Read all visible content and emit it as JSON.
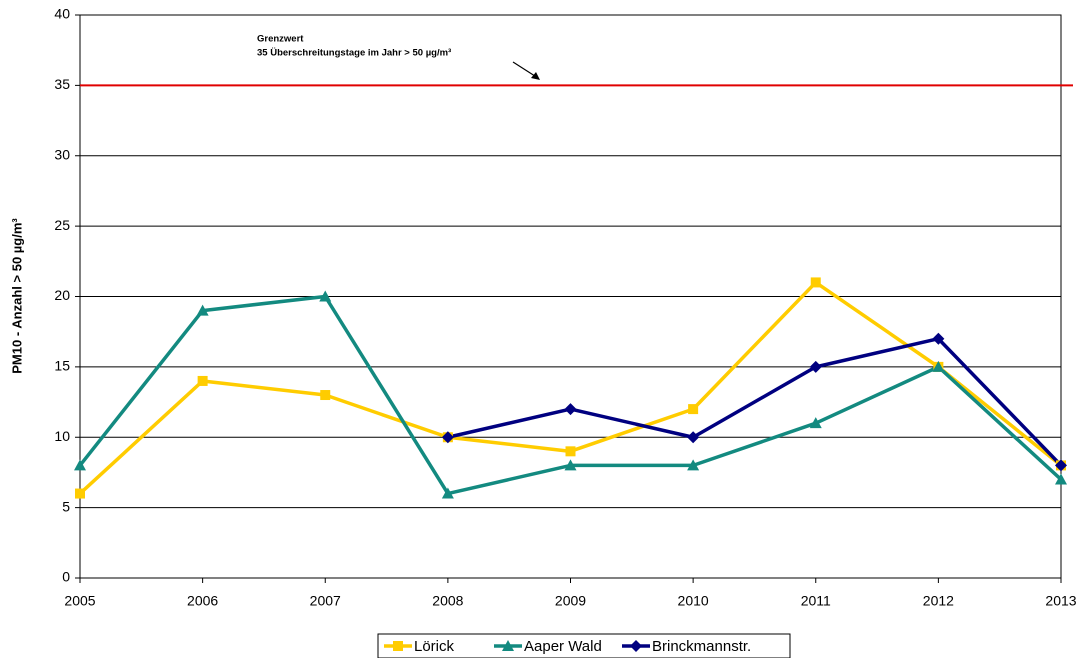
{
  "chart_data": {
    "type": "line",
    "y_label": "PM10 - Anzahl > 50 µg/m³",
    "annotations": [
      "Grenzwert",
      "35 Überschreitungstage im Jahr > 50 µg/m³"
    ],
    "threshold": 35,
    "threshold_color": "#e00000",
    "x": [
      2005,
      2006,
      2007,
      2008,
      2009,
      2010,
      2011,
      2012,
      2013
    ],
    "xlim": [
      2005,
      2013
    ],
    "xticks": [
      2005,
      2006,
      2007,
      2008,
      2009,
      2010,
      2011,
      2012,
      2013
    ],
    "ylim": [
      0,
      40
    ],
    "yticks": [
      0,
      5,
      10,
      15,
      20,
      25,
      30,
      35,
      40
    ],
    "grid": true,
    "legend": "bottom",
    "series": [
      {
        "name": "Lörick",
        "color": "#ffcc00",
        "marker": "square",
        "values": [
          6,
          14,
          13,
          10,
          9,
          12,
          21,
          15,
          8
        ]
      },
      {
        "name": "Aaper Wald",
        "color": "#138a80",
        "marker": "triangle",
        "values": [
          8,
          19,
          20,
          6,
          8,
          8,
          11,
          15,
          7
        ]
      },
      {
        "name": "Brinckmannstr.",
        "color": "#000080",
        "marker": "diamond",
        "values": [
          null,
          null,
          null,
          10,
          12,
          10,
          15,
          17,
          8
        ]
      }
    ]
  }
}
